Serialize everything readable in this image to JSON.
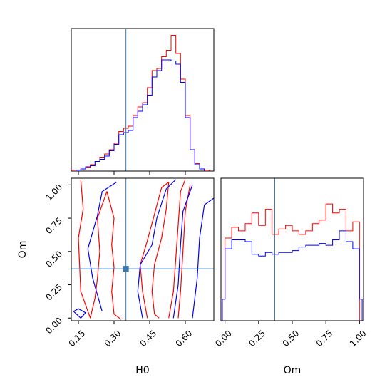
{
  "chart_data": {
    "type": "corner",
    "truth": {
      "H0": 0.35,
      "Om": 0.37
    },
    "truth_color": "#3a78b0",
    "series_colors": {
      "red": "#ff0000",
      "blue": "#0000ff"
    },
    "panels": [
      {
        "id": "h0-marginal",
        "type": "histogram",
        "xlim": [
          0.12,
          0.72
        ],
        "bin_edges": [
          0.12,
          0.14,
          0.16,
          0.18,
          0.2,
          0.22,
          0.24,
          0.26,
          0.28,
          0.3,
          0.32,
          0.34,
          0.36,
          0.38,
          0.4,
          0.42,
          0.44,
          0.46,
          0.48,
          0.5,
          0.52,
          0.54,
          0.56,
          0.58,
          0.6,
          0.62,
          0.64,
          0.66,
          0.68,
          0.7,
          0.72
        ],
        "series": [
          {
            "color": "red",
            "counts": [
              1,
              1,
              2,
              3,
              6,
              9,
              13,
              16,
              20,
              26,
              37,
              40,
              42,
              52,
              60,
              64,
              78,
              94,
              96,
              107,
              113,
              127,
              110,
              86,
              52,
              20,
              7,
              2,
              1,
              0
            ]
          },
          {
            "color": "blue",
            "counts": [
              0,
              1,
              2,
              4,
              5,
              9,
              11,
              14,
              19,
              25,
              34,
              36,
              38,
              50,
              56,
              62,
              71,
              88,
              94,
              104,
              104,
              103,
              100,
              83,
              50,
              20,
              6,
              2,
              0,
              0
            ]
          }
        ]
      },
      {
        "id": "h0-om-2d",
        "type": "contour",
        "xlabel": "H0",
        "ylabel": "Om",
        "xlim": [
          0.12,
          0.72
        ],
        "ylim": [
          -0.02,
          1.05
        ],
        "xticks": [
          "0.15",
          "0.30",
          "0.45",
          "0.60"
        ],
        "yticks": [
          "0.00",
          "0.25",
          "0.50",
          "0.75",
          "1.00"
        ],
        "xtick_values": [
          0.15,
          0.3,
          0.45,
          0.6
        ],
        "ytick_values": [
          0.0,
          0.25,
          0.5,
          0.75,
          1.0
        ],
        "contours": [
          {
            "color": "red",
            "level": 2,
            "points": [
              [
                0.2,
                0.0
              ],
              [
                0.22,
                0.15
              ],
              [
                0.23,
                0.3
              ],
              [
                0.24,
                0.5
              ],
              [
                0.23,
                0.75
              ],
              [
                0.27,
                0.95
              ],
              [
                0.3,
                0.75
              ],
              [
                0.29,
                0.55
              ],
              [
                0.3,
                0.38
              ],
              [
                0.29,
                0.2
              ],
              [
                0.3,
                0.03
              ],
              [
                0.33,
                -0.01
              ]
            ]
          },
          {
            "color": "red",
            "level": 1,
            "points": [
              [
                0.2,
                0.0
              ],
              [
                0.16,
                0.2
              ],
              [
                0.15,
                0.6
              ],
              [
                0.17,
                0.82
              ],
              [
                0.16,
                1.04
              ]
            ]
          },
          {
            "color": "red",
            "level": 3,
            "points": [
              [
                0.44,
                0.0
              ],
              [
                0.42,
                0.2
              ],
              [
                0.41,
                0.4
              ],
              [
                0.44,
                0.58
              ],
              [
                0.47,
                0.78
              ],
              [
                0.5,
                0.98
              ],
              [
                0.53,
                1.02
              ],
              [
                0.52,
                0.82
              ],
              [
                0.5,
                0.6
              ],
              [
                0.47,
                0.4
              ],
              [
                0.46,
                0.2
              ],
              [
                0.47,
                0.03
              ],
              [
                0.49,
                0.0
              ]
            ]
          },
          {
            "color": "red",
            "level": 4,
            "points": [
              [
                0.53,
                0.0
              ],
              [
                0.55,
                0.2
              ],
              [
                0.56,
                0.45
              ],
              [
                0.57,
                0.7
              ],
              [
                0.58,
                0.95
              ],
              [
                0.6,
                1.04
              ]
            ]
          },
          {
            "color": "red",
            "level": 5,
            "points": [
              [
                0.57,
                0.0
              ],
              [
                0.58,
                0.2
              ],
              [
                0.59,
                0.5
              ],
              [
                0.6,
                0.8
              ],
              [
                0.62,
                1.0
              ]
            ]
          },
          {
            "color": "blue",
            "level": 1,
            "points": [
              [
                0.25,
                0.05
              ],
              [
                0.21,
                0.3
              ],
              [
                0.19,
                0.52
              ],
              [
                0.23,
                0.77
              ],
              [
                0.25,
                0.95
              ],
              [
                0.31,
                1.02
              ]
            ]
          },
          {
            "color": "blue",
            "level": 2,
            "points": [
              [
                0.42,
                0.0
              ],
              [
                0.4,
                0.2
              ],
              [
                0.41,
                0.4
              ],
              [
                0.46,
                0.55
              ],
              [
                0.48,
                0.75
              ],
              [
                0.52,
                0.97
              ],
              [
                0.56,
                1.04
              ]
            ]
          },
          {
            "color": "blue",
            "level": 3,
            "points": [
              [
                0.55,
                0.0
              ],
              [
                0.57,
                0.25
              ],
              [
                0.58,
                0.55
              ],
              [
                0.59,
                0.8
              ],
              [
                0.63,
                1.0
              ]
            ]
          },
          {
            "color": "blue",
            "level": 4,
            "points": [
              [
                0.63,
                0.0
              ],
              [
                0.65,
                0.3
              ],
              [
                0.66,
                0.6
              ],
              [
                0.68,
                0.85
              ],
              [
                0.72,
                0.9
              ]
            ]
          },
          {
            "color": "blue",
            "level": 5,
            "points": [
              [
                0.13,
                0.05
              ],
              [
                0.16,
                0.0
              ],
              [
                0.18,
                0.04
              ],
              [
                0.15,
                0.07
              ],
              [
                0.13,
                0.05
              ]
            ]
          }
        ]
      },
      {
        "id": "om-marginal",
        "type": "histogram",
        "xlabel": "Om",
        "xlim": [
          -0.03,
          1.03
        ],
        "xticks": [
          "0.00",
          "0.25",
          "0.50",
          "0.75",
          "1.00"
        ],
        "xtick_values": [
          0.0,
          0.25,
          0.5,
          0.75,
          1.0
        ],
        "bin_edges": [
          -0.02,
          0.0,
          0.05,
          0.1,
          0.15,
          0.2,
          0.25,
          0.3,
          0.35,
          0.4,
          0.45,
          0.5,
          0.55,
          0.6,
          0.65,
          0.7,
          0.75,
          0.8,
          0.85,
          0.9,
          0.95,
          1.0,
          1.02
        ],
        "series": [
          {
            "color": "red",
            "counts": [
              12,
              46,
              52,
              50,
              54,
              60,
              53,
              62,
              48,
              51,
              53,
              50,
              48,
              50,
              54,
              56,
              65,
              60,
              62,
              50,
              55,
              0
            ]
          },
          {
            "color": "blue",
            "counts": [
              12,
              40,
              45,
              45,
              44,
              37,
              36,
              38,
              37,
              38,
              38,
              39,
              41,
              42,
              42,
              43,
              42,
              45,
              50,
              44,
              40,
              12
            ]
          }
        ]
      }
    ]
  }
}
